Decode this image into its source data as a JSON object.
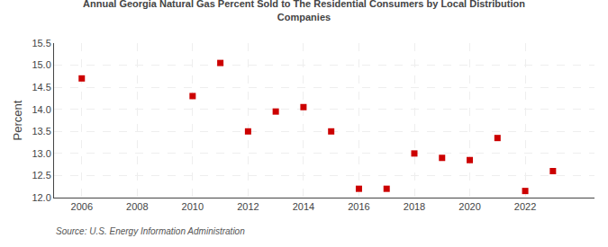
{
  "chart_data": {
    "type": "scatter",
    "title": "Annual Georgia Natural Gas Percent Sold to The Residential Consumers by Local Distribution\nCompanies",
    "ylabel": "Percent",
    "annotations": [
      "Source: U.S. Energy Information Administration"
    ],
    "x": [
      2006,
      2010,
      2011,
      2012,
      2013,
      2014,
      2015,
      2016,
      2017,
      2018,
      2019,
      2020,
      2021,
      2022,
      2023
    ],
    "values": [
      14.7,
      14.3,
      15.05,
      13.5,
      13.95,
      14.05,
      13.5,
      12.2,
      12.2,
      13.0,
      12.9,
      12.85,
      13.35,
      12.15,
      12.6
    ],
    "color": "#cc0000",
    "marker": "square",
    "xlim": [
      2005.0,
      2024.5
    ],
    "xticks": [
      2006,
      2008,
      2010,
      2012,
      2014,
      2016,
      2018,
      2020,
      2022
    ],
    "ylim": [
      12.0,
      15.5
    ],
    "yticks": [
      {
        "value": 12.0,
        "label": "12.0"
      },
      {
        "value": 12.5,
        "label": "12.5"
      },
      {
        "value": 13.0,
        "label": "13.0"
      },
      {
        "value": 13.5,
        "label": "13.5"
      },
      {
        "value": 14.0,
        "label": "14.0"
      },
      {
        "value": 14.5,
        "label": "14.5"
      },
      {
        "value": 15.0,
        "label": "15.0"
      },
      {
        "value": 15.5,
        "label": "15.5"
      }
    ],
    "grid": true
  }
}
